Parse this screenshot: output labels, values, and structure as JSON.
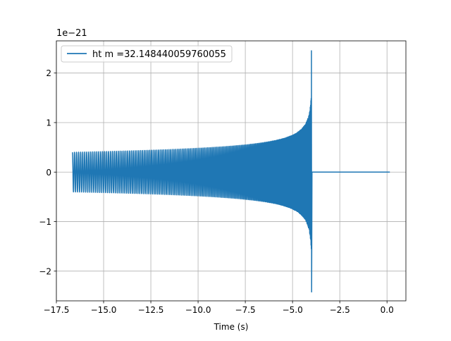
{
  "chart_data": {
    "type": "line",
    "title": "",
    "xlabel": "Time (s)",
    "ylabel": "",
    "y_offset_label": "1e−21",
    "xlim": [
      -17.5,
      1.0
    ],
    "ylim": [
      -2.6,
      2.65
    ],
    "x_ticks": [
      -17.5,
      -15.0,
      -12.5,
      -10.0,
      -7.5,
      -5.0,
      -2.5,
      0.0
    ],
    "x_tick_labels": [
      "−17.5",
      "−15.0",
      "−12.5",
      "−10.0",
      "−7.5",
      "−5.0",
      "−2.5",
      "0.0"
    ],
    "y_ticks": [
      -2,
      -1,
      0,
      1,
      2
    ],
    "y_tick_labels": [
      "−2",
      "−1",
      "0",
      "1",
      "2"
    ],
    "grid": true,
    "legend_position": "top-left",
    "series": [
      {
        "name": "ht m =32.148440059760055",
        "color": "#1f77b4",
        "waveform": {
          "t_start": -16.65,
          "t_merger": -4.0,
          "t_end": 0.15,
          "amplitude_start": 0.4,
          "amplitude_peak": 2.45,
          "amplitude_min": -2.42,
          "visible_cycles": 180
        }
      }
    ]
  }
}
